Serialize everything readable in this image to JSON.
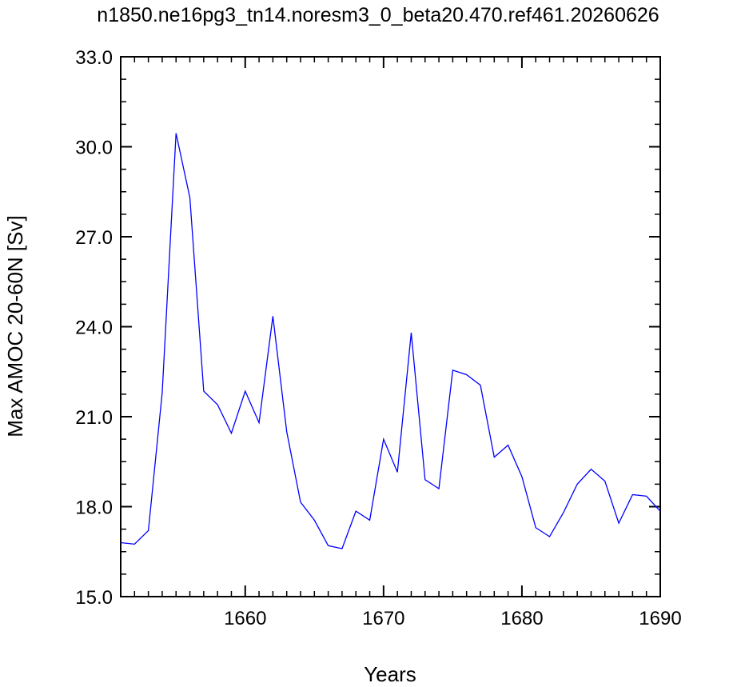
{
  "chart_data": {
    "type": "line",
    "title": "n1850.ne16pg3_tn14.noresm3_0_beta20.470.ref461.20260626",
    "xlabel": "Years",
    "ylabel": "Max AMOC 20-60N [Sv]",
    "xlim": [
      1651,
      1690
    ],
    "ylim": [
      15.0,
      33.0
    ],
    "x_ticks": [
      1660,
      1670,
      1680,
      1690
    ],
    "x_tick_labels": [
      "1660",
      "1670",
      "1680",
      "1690"
    ],
    "y_ticks": [
      15,
      18,
      21,
      24,
      27,
      30,
      33
    ],
    "y_tick_labels": [
      "15.0",
      "18.0",
      "21.0",
      "24.0",
      "27.0",
      "30.0",
      "33.0"
    ],
    "grid": false,
    "line_color": "#0000ff",
    "series": [
      {
        "x": [
          1651,
          1652,
          1653,
          1654,
          1655,
          1656,
          1657,
          1658,
          1659,
          1660,
          1661,
          1662,
          1663,
          1664,
          1665,
          1666,
          1667,
          1668,
          1669,
          1670,
          1671,
          1672,
          1673,
          1674,
          1675,
          1676,
          1677,
          1678,
          1679,
          1680,
          1681,
          1682,
          1683,
          1684,
          1685,
          1686,
          1687,
          1688,
          1689,
          1690
        ],
        "values": [
          16.8,
          16.75,
          17.2,
          21.8,
          30.45,
          28.3,
          21.85,
          21.4,
          20.45,
          21.85,
          20.8,
          24.35,
          20.5,
          18.15,
          17.55,
          16.7,
          16.6,
          17.85,
          17.55,
          20.25,
          19.15,
          23.8,
          18.9,
          18.6,
          22.55,
          22.4,
          22.05,
          19.65,
          20.05,
          19.0,
          17.3,
          17.0,
          17.8,
          18.75,
          19.25,
          18.85,
          17.45,
          18.4,
          18.35,
          17.85
        ]
      }
    ]
  }
}
